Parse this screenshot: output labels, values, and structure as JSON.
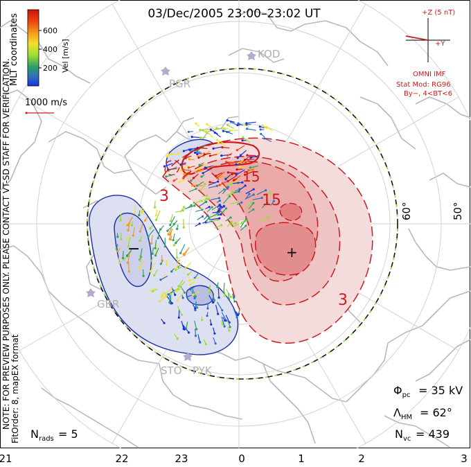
{
  "title": "03/Dec/2005 23:00–23:02 UT",
  "colorbar": {
    "ticks": [
      "600",
      "400",
      "200"
    ],
    "label": "Vel [m/s]",
    "colors": [
      "#cc1111",
      "#ee4411",
      "#f49a1a",
      "#f2e030",
      "#99dd33",
      "#2e9e6a",
      "#2f6fbf",
      "#1a2ee0"
    ]
  },
  "coords_label": "MLT coordinates",
  "vector_scale": "1000 m/s",
  "imf": {
    "z_label": "+Z (5 nT)",
    "y_label": "+Y",
    "title": "OMNI IMF",
    "model": "Stat Mod: RG96",
    "condition": "By−, 4<BT<6"
  },
  "stations": [
    "KOD",
    "PGR",
    "GBR",
    "STO",
    "PYK"
  ],
  "latitude_labels": [
    "60°",
    "50°"
  ],
  "contour_labels": [
    "3",
    "15",
    "3",
    "15",
    "−",
    "+"
  ],
  "mlt_labels": [
    "21",
    "22",
    "23",
    "0",
    "1",
    "2",
    "3"
  ],
  "left_note": {
    "line1": "NOTE: FOR PREVIEW PURPOSES ONLY. PLEASE CONTACT VT-SD STAFF FOR VERIFICATION.",
    "line2": "FitOrder: 8, mapEX format"
  },
  "stats": {
    "phi_label": "Φ",
    "phi_sub": "pc",
    "phi_value": "= 35 kV",
    "lambda_label": "Λ",
    "lambda_sub": "HM",
    "lambda_value": "= 62°",
    "nvc_label": "N",
    "nvc_sub": "vc",
    "nvc_value": "= 439",
    "nrads_label": "N",
    "nrads_sub": "rads",
    "nrads_value": "= 5"
  }
}
